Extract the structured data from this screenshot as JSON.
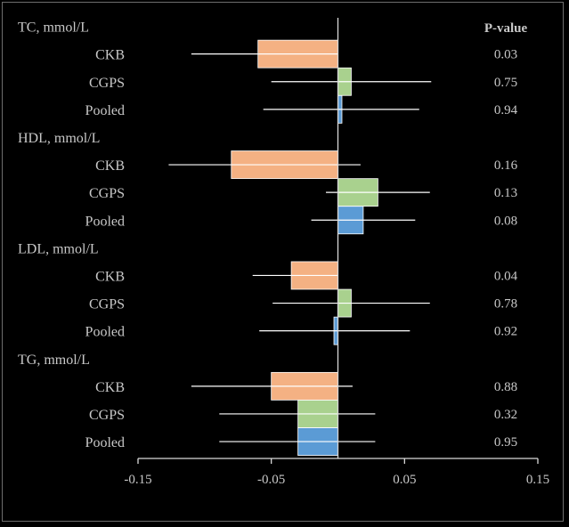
{
  "colors": {
    "background": "#000000",
    "text": "#c8c8c8",
    "axis": "#d9d9d9",
    "ci_line": "#ffffff",
    "ckb": "#f4b183",
    "cgps": "#a9d18e",
    "pooled": "#5b9bd5"
  },
  "chart_data": {
    "type": "bar",
    "orientation": "horizontal",
    "p_header": "P-value",
    "xlim": [
      -0.15,
      0.15
    ],
    "x_ticks": [
      "-0.15",
      "-0.05",
      "0.05",
      "0.15"
    ],
    "groups": [
      {
        "label": "TC, mmol/L",
        "rows": [
          {
            "label": "CKB",
            "value": -0.06,
            "ci": [
              -0.11,
              0.0
            ],
            "p": "0.03",
            "color_key": "ckb"
          },
          {
            "label": "CGPS",
            "value": 0.01,
            "ci": [
              -0.05,
              0.07
            ],
            "p": "0.75",
            "color_key": "cgps"
          },
          {
            "label": "Pooled",
            "value": 0.003,
            "ci": [
              -0.056,
              0.061
            ],
            "p": "0.94",
            "color_key": "pooled"
          }
        ]
      },
      {
        "label": "HDL, mmol/L",
        "rows": [
          {
            "label": "CKB",
            "value": -0.08,
            "ci": [
              -0.127,
              0.017
            ],
            "p": "0.16",
            "color_key": "ckb"
          },
          {
            "label": "CGPS",
            "value": 0.03,
            "ci": [
              -0.009,
              0.069
            ],
            "p": "0.13",
            "color_key": "cgps"
          },
          {
            "label": "Pooled",
            "value": 0.019,
            "ci": [
              -0.02,
              0.058
            ],
            "p": "0.08",
            "color_key": "pooled"
          }
        ]
      },
      {
        "label": "LDL, mmol/L",
        "rows": [
          {
            "label": "CKB",
            "value": -0.035,
            "ci": [
              -0.064,
              0.0
            ],
            "p": "0.04",
            "color_key": "ckb"
          },
          {
            "label": "CGPS",
            "value": 0.01,
            "ci": [
              -0.049,
              0.069
            ],
            "p": "0.78",
            "color_key": "cgps"
          },
          {
            "label": "Pooled",
            "value": -0.003,
            "ci": [
              -0.059,
              0.054
            ],
            "p": "0.92",
            "color_key": "pooled"
          }
        ]
      },
      {
        "label": "TG, mmol/L",
        "rows": [
          {
            "label": "CKB",
            "value": -0.05,
            "ci": [
              -0.11,
              0.011
            ],
            "p": "0.88",
            "color_key": "ckb"
          },
          {
            "label": "CGPS",
            "value": -0.03,
            "ci": [
              -0.089,
              0.028
            ],
            "p": "0.32",
            "color_key": "cgps"
          },
          {
            "label": "Pooled",
            "value": -0.03,
            "ci": [
              -0.089,
              0.028
            ],
            "p": "0.95",
            "color_key": "pooled"
          }
        ]
      }
    ]
  }
}
